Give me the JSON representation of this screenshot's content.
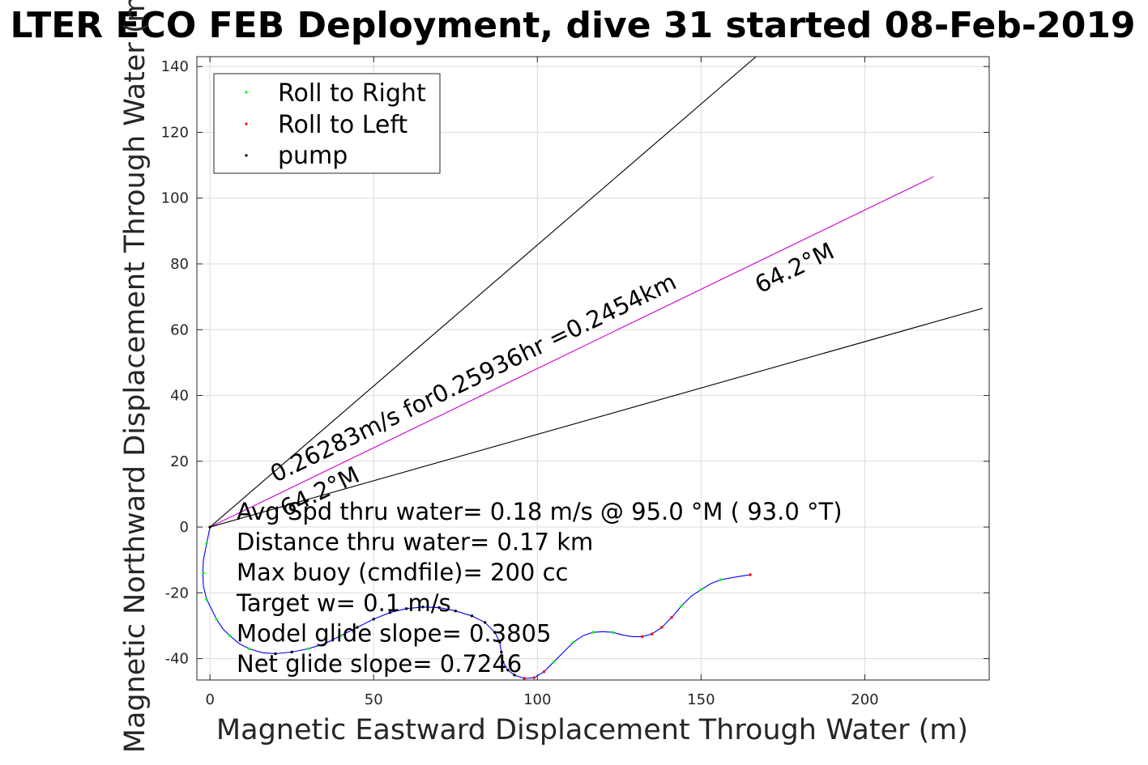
{
  "chart_data": {
    "type": "line",
    "title": "LTER ECO FEB Deployment, dive 31 started 08-Feb-2019",
    "xlabel": "Magnetic Eastward Displacement Through Water (m)",
    "ylabel": "Magnetic Northward Displacement Through Water (m)",
    "xlim": [
      -4,
      238
    ],
    "ylim": [
      -46.5,
      143
    ],
    "xticks": [
      0,
      50,
      100,
      150,
      200
    ],
    "yticks": [
      -40,
      -20,
      0,
      20,
      40,
      60,
      80,
      100,
      120,
      140
    ],
    "grid": true,
    "legend_position": "top-left",
    "legend": [
      {
        "label": "Roll to Right",
        "color": "#00ff00"
      },
      {
        "label": "Roll to Left",
        "color": "#ff0000"
      },
      {
        "label": "pump",
        "color": "#000000"
      }
    ],
    "track": {
      "color": "#0000ff",
      "points": [
        [
          0,
          0
        ],
        [
          -1,
          -5
        ],
        [
          -2,
          -10
        ],
        [
          -2.2,
          -14
        ],
        [
          -2,
          -18
        ],
        [
          -1,
          -22
        ],
        [
          0.5,
          -25
        ],
        [
          2,
          -28
        ],
        [
          4,
          -31
        ],
        [
          6,
          -33
        ],
        [
          9,
          -35.5
        ],
        [
          12,
          -37
        ],
        [
          16,
          -38.2
        ],
        [
          20,
          -38.5
        ],
        [
          25,
          -38
        ],
        [
          30,
          -37
        ],
        [
          35,
          -35.5
        ],
        [
          40,
          -33
        ],
        [
          45,
          -30.5
        ],
        [
          50,
          -28
        ],
        [
          55,
          -26
        ],
        [
          60,
          -24.8
        ],
        [
          65,
          -24.3
        ],
        [
          70,
          -24.5
        ],
        [
          75,
          -25.5
        ],
        [
          80,
          -27
        ],
        [
          84,
          -29
        ],
        [
          87,
          -32
        ],
        [
          88.5,
          -35
        ],
        [
          89,
          -38
        ],
        [
          89.5,
          -41
        ],
        [
          91,
          -43.5
        ],
        [
          93,
          -45
        ],
        [
          96,
          -46
        ],
        [
          99,
          -45.8
        ],
        [
          102,
          -44
        ],
        [
          105,
          -41
        ],
        [
          108,
          -38
        ],
        [
          111,
          -35
        ],
        [
          114,
          -33
        ],
        [
          117,
          -32
        ],
        [
          120,
          -31.8
        ],
        [
          123,
          -32
        ],
        [
          126,
          -32.8
        ],
        [
          129,
          -33.3
        ],
        [
          132,
          -33.3
        ],
        [
          135,
          -32.5
        ],
        [
          138,
          -30.5
        ],
        [
          141,
          -27.5
        ],
        [
          144,
          -24
        ],
        [
          147,
          -21
        ],
        [
          150,
          -19
        ],
        [
          153,
          -17.2
        ],
        [
          156,
          -16
        ],
        [
          160,
          -15.3
        ],
        [
          163,
          -14.8
        ],
        [
          165,
          -14.5
        ]
      ],
      "roll_right_points": [
        [
          -1,
          -5
        ],
        [
          -2,
          -14
        ],
        [
          -1,
          -22
        ],
        [
          2,
          -28
        ],
        [
          6,
          -33
        ],
        [
          12,
          -37
        ],
        [
          30,
          -37
        ],
        [
          40,
          -33
        ],
        [
          105,
          -41
        ],
        [
          111,
          -35
        ],
        [
          117,
          -32
        ],
        [
          123,
          -32
        ],
        [
          144,
          -24
        ],
        [
          150,
          -19
        ],
        [
          156,
          -16
        ]
      ],
      "roll_left_points": [
        [
          0,
          0
        ],
        [
          96,
          -46
        ],
        [
          99,
          -45.8
        ],
        [
          102,
          -44
        ],
        [
          132,
          -33.3
        ],
        [
          135,
          -32.5
        ],
        [
          138,
          -30.5
        ],
        [
          141,
          -27.5
        ],
        [
          165,
          -14.5
        ]
      ],
      "pump_points": [
        [
          0,
          0
        ],
        [
          20,
          -38.5
        ],
        [
          25,
          -38
        ],
        [
          45,
          -30.5
        ],
        [
          50,
          -28
        ],
        [
          55,
          -26
        ],
        [
          60,
          -24.8
        ],
        [
          65,
          -24.3
        ],
        [
          70,
          -24.5
        ],
        [
          75,
          -25.5
        ],
        [
          80,
          -27
        ],
        [
          84,
          -29
        ],
        [
          87,
          -32
        ],
        [
          88.5,
          -35
        ],
        [
          89,
          -38
        ],
        [
          89.5,
          -41
        ],
        [
          91,
          -43.5
        ],
        [
          93,
          -45
        ]
      ]
    },
    "lines": [
      {
        "name": "upper",
        "color": "#000000",
        "points": [
          [
            0,
            0
          ],
          [
            200,
            171.5
          ]
        ]
      },
      {
        "name": "heading",
        "color": "#cc00cc",
        "points": [
          [
            0,
            0
          ],
          [
            221,
            106.5
          ]
        ]
      },
      {
        "name": "lower",
        "color": "#000000",
        "points": [
          [
            0,
            0
          ],
          [
            236,
            66.5
          ]
        ]
      }
    ],
    "rotated_labels": [
      {
        "text": "0.26283m/s for0.25936hr =0.2454km",
        "x": 20,
        "y": 13.5
      },
      {
        "text": "64.2°M",
        "x": 23,
        "y": 3
      },
      {
        "text": "64.2°M",
        "x": 168,
        "y": 71
      }
    ],
    "annotations": [
      "Avg Spd thru water=  0.18 m/s @  95.0 °M ( 93.0 °T)",
      "Distance thru water=  0.17 km",
      "Max buoy (cmdfile)= 200 cc",
      "Target w= 0.1 m/s",
      "Model glide slope= 0.3805",
      "Net glide slope= 0.7246"
    ]
  }
}
